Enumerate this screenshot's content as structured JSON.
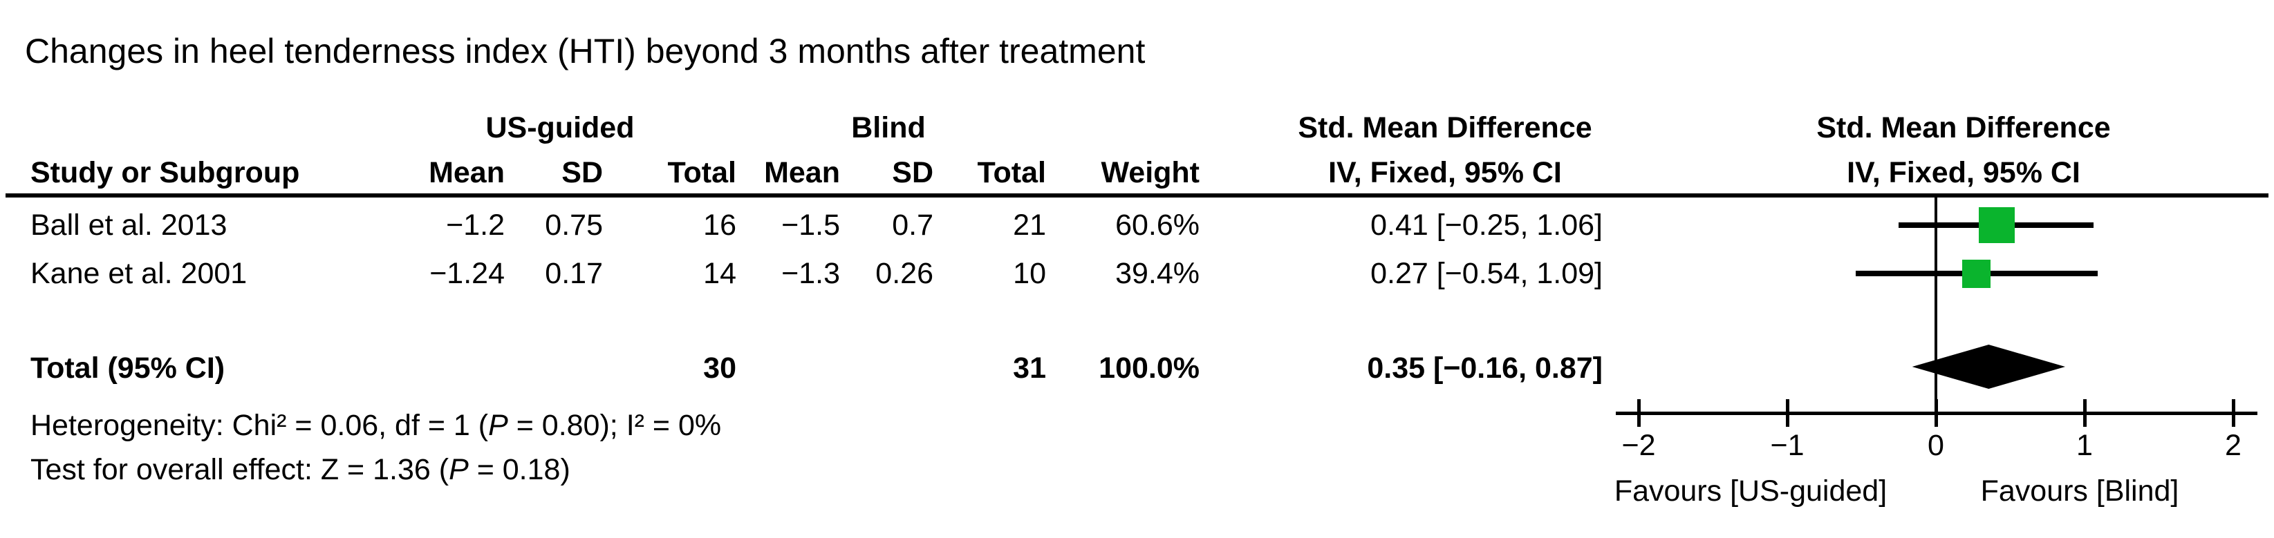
{
  "title": "Changes in heel tenderness index (HTI) beyond 3 months after treatment",
  "header": {
    "group_us": "US-guided",
    "group_blind": "Blind",
    "smd_col_title": "Std. Mean Difference",
    "smd_plot_title": "Std. Mean Difference",
    "method_col": "IV, Fixed, 95% CI",
    "method_plot": "IV, Fixed, 95% CI",
    "study": "Study or Subgroup",
    "us": [
      "Mean",
      "SD",
      "Total"
    ],
    "blind": [
      "Mean",
      "SD",
      "Total"
    ],
    "weight": "Weight"
  },
  "rows": [
    {
      "study": "Ball et al. 2013",
      "cells": [
        "−1.2",
        "0.75",
        "16",
        "−1.5",
        "0.7",
        "21",
        "60.6%"
      ],
      "effect": "0.41 [−0.25, 1.06]"
    },
    {
      "study": "Kane et al. 2001",
      "cells": [
        "−1.24",
        "0.17",
        "14",
        "−1.3",
        "0.26",
        "10",
        "39.4%"
      ],
      "effect": "0.27 [−0.54, 1.09]"
    }
  ],
  "total_row": {
    "label": "Total (95% CI)",
    "us_total": "30",
    "blind_total": "31",
    "weight": "100.0%",
    "effect": "0.35 [−0.16, 0.87]"
  },
  "stats": {
    "heterogeneity": [
      {
        "t": "Heterogeneity: Chi² = 0.06, df = 1 ("
      },
      {
        "t": "P",
        "i": 1
      },
      {
        "t": " = 0.80); I² = 0%"
      }
    ],
    "overall": [
      {
        "t": "Test for overall effect: Z = 1.36 ("
      },
      {
        "t": "P",
        "i": 1
      },
      {
        "t": " = 0.18)"
      }
    ]
  },
  "axis": {
    "tick_labels": [
      "−2",
      "−1",
      "0",
      "1",
      "2"
    ],
    "favours_left": "Favours [US-guided]",
    "favours_right": "Favours [Blind]"
  },
  "colors": {
    "square_green": "#0ab42d",
    "diamond_black": "#000000",
    "line_black": "#000000"
  },
  "chart_data": {
    "type": "forest",
    "title": "Changes in heel tenderness index (HTI) beyond 3 months after treatment",
    "effect_measure": "Std. Mean Difference",
    "method": "IV, Fixed, 95% CI",
    "studies": [
      {
        "name": "Ball et al. 2013",
        "us_guided": {
          "mean": -1.2,
          "sd": 0.75,
          "total": 16
        },
        "blind": {
          "mean": -1.5,
          "sd": 0.7,
          "total": 21
        },
        "weight_pct": 60.6,
        "smd": 0.41,
        "ci_low": -0.25,
        "ci_high": 1.06
      },
      {
        "name": "Kane et al. 2001",
        "us_guided": {
          "mean": -1.24,
          "sd": 0.17,
          "total": 14
        },
        "blind": {
          "mean": -1.3,
          "sd": 0.26,
          "total": 10
        },
        "weight_pct": 39.4,
        "smd": 0.27,
        "ci_low": -0.54,
        "ci_high": 1.09
      }
    ],
    "total": {
      "label": "Total (95% CI)",
      "us_total": 30,
      "blind_total": 31,
      "weight_pct": 100.0,
      "smd": 0.35,
      "ci_low": -0.16,
      "ci_high": 0.87
    },
    "heterogeneity": "Chi² = 0.06, df = 1 (P = 0.80); I² = 0%",
    "overall_effect": "Z = 1.36 (P = 0.18)",
    "xaxis": {
      "min": -2,
      "max": 2,
      "ticks": [
        -2,
        -1,
        0,
        1,
        2
      ],
      "zero_line": 0,
      "left_label": "Favours [US-guided]",
      "right_label": "Favours [Blind]"
    }
  }
}
